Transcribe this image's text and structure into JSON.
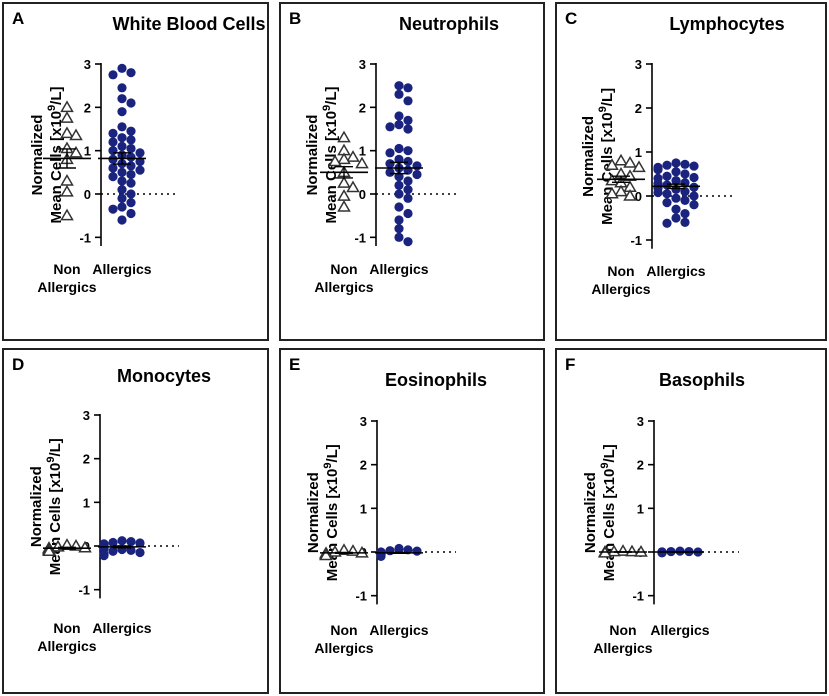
{
  "chart_data": [
    {
      "type": "scatter",
      "panel": "A",
      "title": "White Blood Cells",
      "ylabel_line1": "Normalized",
      "ylabel_line2": "Mean Cells [x10",
      "ylabel_sup": "9",
      "ylabel_tail": "/L]",
      "ylim": [
        -1.2,
        3
      ],
      "yticks": [
        "3",
        "2",
        "1",
        "0",
        "-1"
      ],
      "ytick_values": [
        3,
        2,
        1,
        0,
        -1
      ],
      "categories": [
        "Non Allergics",
        "Allergics"
      ],
      "series": [
        {
          "name": "Non Allergics",
          "marker": "triangle",
          "mean": 0.82,
          "sem": 0.22,
          "values": [
            2.0,
            1.75,
            1.4,
            1.35,
            1.05,
            0.95,
            0.8,
            0.3,
            0.05,
            -0.5
          ]
        },
        {
          "name": "Allergics",
          "marker": "circle",
          "mean": 0.82,
          "sem": 0.13,
          "values": [
            2.9,
            2.8,
            2.75,
            2.45,
            2.2,
            2.1,
            1.9,
            1.55,
            1.45,
            1.4,
            1.3,
            1.25,
            1.2,
            1.1,
            1.05,
            1.0,
            0.95,
            0.9,
            0.85,
            0.8,
            0.75,
            0.7,
            0.65,
            0.6,
            0.55,
            0.5,
            0.45,
            0.4,
            0.3,
            0.25,
            0.1,
            0.0,
            -0.1,
            -0.2,
            -0.3,
            -0.35,
            -0.45,
            -0.6
          ]
        }
      ]
    },
    {
      "type": "scatter",
      "panel": "B",
      "title": "Neutrophils",
      "ylabel_line1": "Normalized",
      "ylabel_line2": "Mean Cells [x10",
      "ylabel_sup": "9",
      "ylabel_tail": "/L]",
      "ylim": [
        -1.2,
        3
      ],
      "yticks": [
        "3",
        "2",
        "1",
        "0",
        "-1"
      ],
      "ytick_values": [
        3,
        2,
        1,
        0,
        -1
      ],
      "categories": [
        "Non Allergics",
        "Allergics"
      ],
      "series": [
        {
          "name": "Non Allergics",
          "marker": "triangle",
          "mean": 0.5,
          "sem": 0.13,
          "values": [
            1.3,
            1.0,
            0.85,
            0.8,
            0.75,
            0.7,
            0.5,
            0.25,
            0.15,
            -0.05,
            -0.3
          ]
        },
        {
          "name": "Allergics",
          "marker": "circle",
          "mean": 0.6,
          "sem": 0.13,
          "values": [
            2.5,
            2.45,
            2.3,
            2.15,
            1.8,
            1.7,
            1.6,
            1.55,
            1.5,
            1.05,
            1.0,
            0.95,
            0.8,
            0.75,
            0.7,
            0.65,
            0.6,
            0.55,
            0.5,
            0.45,
            0.4,
            0.3,
            0.2,
            0.1,
            0.0,
            -0.1,
            -0.3,
            -0.45,
            -0.6,
            -0.8,
            -1.0,
            -1.1
          ]
        }
      ]
    },
    {
      "type": "scatter",
      "panel": "C",
      "title": "Lymphocytes",
      "ylabel_line1": "Normalized",
      "ylabel_line2": "Mean Cells [x10",
      "ylabel_sup": "9",
      "ylabel_tail": "/L]",
      "ylim": [
        -1.2,
        3
      ],
      "yticks": [
        "3",
        "2",
        "1",
        "0",
        "-1"
      ],
      "ytick_values": [
        3,
        2,
        1,
        0,
        -1
      ],
      "categories": [
        "Non Allergics",
        "Allergics"
      ],
      "series": [
        {
          "name": "Non Allergics",
          "marker": "triangle",
          "mean": 0.38,
          "sem": 0.07,
          "values": [
            0.8,
            0.75,
            0.7,
            0.65,
            0.5,
            0.45,
            0.35,
            0.3,
            0.2,
            0.1,
            0.05,
            0.0
          ]
        },
        {
          "name": "Allergics",
          "marker": "circle",
          "mean": 0.22,
          "sem": 0.05,
          "values": [
            0.75,
            0.72,
            0.7,
            0.68,
            0.65,
            0.62,
            0.6,
            0.55,
            0.5,
            0.45,
            0.42,
            0.4,
            0.35,
            0.3,
            0.28,
            0.25,
            0.2,
            0.18,
            0.15,
            0.1,
            0.08,
            0.05,
            0.0,
            -0.05,
            -0.1,
            -0.15,
            -0.2,
            -0.3,
            -0.4,
            -0.5,
            -0.6,
            -0.62
          ]
        }
      ]
    },
    {
      "type": "scatter",
      "panel": "D",
      "title": "Monocytes",
      "ylabel_line1": "Normalized",
      "ylabel_line2": "Mean Cells [x10",
      "ylabel_sup": "9",
      "ylabel_tail": "/L]",
      "ylim": [
        -1.2,
        3
      ],
      "yticks": [
        "3",
        "2",
        "1",
        "0",
        "-1"
      ],
      "ytick_values": [
        3,
        2,
        1,
        0,
        -1
      ],
      "categories": [
        "Non Allergics",
        "Allergics"
      ],
      "series": [
        {
          "name": "Non Allergics",
          "marker": "triangle",
          "mean": -0.05,
          "sem": 0.02,
          "values": [
            0.02,
            0.0,
            -0.02,
            -0.04,
            -0.05,
            -0.06,
            -0.08,
            -0.1,
            -0.12
          ]
        },
        {
          "name": "Allergics",
          "marker": "circle",
          "mean": -0.02,
          "sem": 0.02,
          "values": [
            0.12,
            0.1,
            0.08,
            0.07,
            0.05,
            0.04,
            0.03,
            0.02,
            0.0,
            -0.02,
            -0.03,
            -0.05,
            -0.06,
            -0.08,
            -0.1,
            -0.12,
            -0.15,
            -0.18,
            -0.2,
            -0.22
          ]
        }
      ]
    },
    {
      "type": "scatter",
      "panel": "E",
      "title": "Eosinophils",
      "ylabel_line1": "Normalized",
      "ylabel_line2": "Mean Cells [x10",
      "ylabel_sup": "9",
      "ylabel_tail": "/L]",
      "ylim": [
        -1.2,
        3
      ],
      "yticks": [
        "3",
        "2",
        "1",
        "0",
        "-1"
      ],
      "ytick_values": [
        3,
        2,
        1,
        0,
        -1
      ],
      "categories": [
        "Non Allergics",
        "Allergics"
      ],
      "series": [
        {
          "name": "Non Allergics",
          "marker": "triangle",
          "mean": -0.02,
          "sem": 0.01,
          "values": [
            0.04,
            0.02,
            0.0,
            -0.02,
            -0.03,
            -0.05,
            -0.06,
            -0.08
          ]
        },
        {
          "name": "Allergics",
          "marker": "circle",
          "mean": -0.02,
          "sem": 0.01,
          "values": [
            0.08,
            0.05,
            0.03,
            0.02,
            0.0,
            -0.01,
            -0.02,
            -0.03,
            -0.04,
            -0.05,
            -0.06,
            -0.08,
            -0.1
          ]
        }
      ]
    },
    {
      "type": "scatter",
      "panel": "F",
      "title": "Basophils",
      "ylabel_line1": "Normalized",
      "ylabel_line2": "Mean Cells [x10",
      "ylabel_sup": "9",
      "ylabel_tail": "/L]",
      "ylim": [
        -1.2,
        3
      ],
      "yticks": [
        "3",
        "2",
        "1",
        "0",
        "-1"
      ],
      "ytick_values": [
        3,
        2,
        1,
        0,
        -1
      ],
      "categories": [
        "Non Allergics",
        "Allergics"
      ],
      "series": [
        {
          "name": "Non Allergics",
          "marker": "triangle",
          "mean": 0.0,
          "sem": 0.005,
          "values": [
            0.02,
            0.01,
            0.0,
            -0.01,
            -0.02,
            0.0,
            0.01,
            -0.01
          ]
        },
        {
          "name": "Allergics",
          "marker": "circle",
          "mean": 0.0,
          "sem": 0.005,
          "values": [
            0.02,
            0.01,
            0.01,
            0.0,
            0.0,
            0.0,
            -0.01,
            -0.01,
            -0.02,
            0.0
          ]
        }
      ]
    }
  ],
  "style": {
    "marker_color_allergics": "#1a237e",
    "marker_color_non_allergics": "#333333",
    "frame_color": "#222222"
  }
}
